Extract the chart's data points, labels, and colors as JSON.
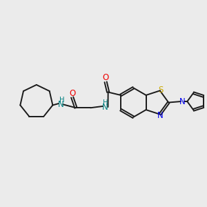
{
  "background_color": "#ebebeb",
  "bond_color": "#1a1a1a",
  "N_color": "#0000ee",
  "NH_color": "#008080",
  "S_color": "#ccaa00",
  "O_color": "#ee0000",
  "figsize": [
    3.0,
    3.0
  ],
  "dpi": 100,
  "xlim": [
    0,
    10
  ],
  "ylim": [
    0,
    10
  ],
  "lw": 1.4,
  "fs": 8.5
}
